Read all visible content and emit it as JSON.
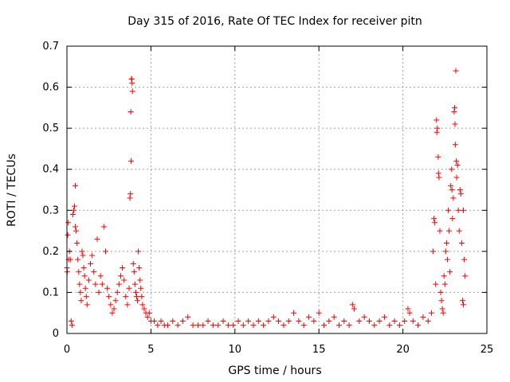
{
  "chart_data": {
    "type": "scatter",
    "title": "Day 315 of 2016, Rate Of TEC Index for receiver pitn",
    "xlabel": "GPS time / hours",
    "ylabel": "ROTI / TECUs",
    "xlim": [
      0,
      25
    ],
    "ylim": [
      0,
      0.7
    ],
    "grid": true,
    "marker": "+",
    "marker_color": "#ff0000",
    "x_ticks": [
      0,
      5,
      10,
      15,
      20,
      25
    ],
    "x_tick_labels": [
      "0",
      "5",
      "10",
      "15",
      "20",
      "25"
    ],
    "y_ticks": [
      0,
      0.1,
      0.2,
      0.3,
      0.4,
      0.5,
      0.6,
      0.7
    ],
    "y_tick_labels": [
      "0",
      "0.1",
      "0.2",
      "0.3",
      "0.4",
      "0.5",
      "0.6",
      "0.7"
    ],
    "series": [
      {
        "name": "ROTI",
        "points": [
          [
            0.0,
            0.16
          ],
          [
            0.02,
            0.15
          ],
          [
            0.05,
            0.24
          ],
          [
            0.08,
            0.27
          ],
          [
            0.1,
            0.18
          ],
          [
            0.15,
            0.2
          ],
          [
            0.2,
            0.18
          ],
          [
            0.25,
            0.03
          ],
          [
            0.3,
            0.02
          ],
          [
            0.35,
            0.29
          ],
          [
            0.4,
            0.3
          ],
          [
            0.45,
            0.31
          ],
          [
            0.5,
            0.36
          ],
          [
            0.5,
            0.26
          ],
          [
            0.55,
            0.25
          ],
          [
            0.6,
            0.22
          ],
          [
            0.65,
            0.18
          ],
          [
            0.7,
            0.15
          ],
          [
            0.75,
            0.12
          ],
          [
            0.8,
            0.1
          ],
          [
            0.85,
            0.08
          ],
          [
            0.9,
            0.2
          ],
          [
            0.95,
            0.19
          ],
          [
            1.0,
            0.16
          ],
          [
            1.05,
            0.14
          ],
          [
            1.1,
            0.11
          ],
          [
            1.15,
            0.09
          ],
          [
            1.2,
            0.07
          ],
          [
            1.3,
            0.13
          ],
          [
            1.4,
            0.17
          ],
          [
            1.5,
            0.19
          ],
          [
            1.6,
            0.15
          ],
          [
            1.7,
            0.12
          ],
          [
            1.8,
            0.23
          ],
          [
            1.9,
            0.1
          ],
          [
            2.0,
            0.14
          ],
          [
            2.1,
            0.12
          ],
          [
            2.2,
            0.26
          ],
          [
            2.3,
            0.2
          ],
          [
            2.4,
            0.11
          ],
          [
            2.5,
            0.09
          ],
          [
            2.6,
            0.07
          ],
          [
            2.7,
            0.05
          ],
          [
            2.8,
            0.06
          ],
          [
            2.9,
            0.08
          ],
          [
            3.0,
            0.1
          ],
          [
            3.1,
            0.12
          ],
          [
            3.2,
            0.14
          ],
          [
            3.3,
            0.16
          ],
          [
            3.4,
            0.13
          ],
          [
            3.5,
            0.09
          ],
          [
            3.6,
            0.07
          ],
          [
            3.7,
            0.11
          ],
          [
            3.75,
            0.33
          ],
          [
            3.78,
            0.34
          ],
          [
            3.8,
            0.54
          ],
          [
            3.82,
            0.42
          ],
          [
            3.84,
            0.62
          ],
          [
            3.86,
            0.62
          ],
          [
            3.88,
            0.61
          ],
          [
            3.9,
            0.59
          ],
          [
            3.95,
            0.17
          ],
          [
            4.0,
            0.15
          ],
          [
            4.05,
            0.12
          ],
          [
            4.1,
            0.1
          ],
          [
            4.15,
            0.09
          ],
          [
            4.2,
            0.08
          ],
          [
            4.25,
            0.2
          ],
          [
            4.3,
            0.16
          ],
          [
            4.35,
            0.13
          ],
          [
            4.4,
            0.11
          ],
          [
            4.45,
            0.09
          ],
          [
            4.5,
            0.07
          ],
          [
            4.6,
            0.06
          ],
          [
            4.7,
            0.05
          ],
          [
            4.8,
            0.04
          ],
          [
            4.9,
            0.05
          ],
          [
            5.0,
            0.03
          ],
          [
            5.2,
            0.03
          ],
          [
            5.4,
            0.02
          ],
          [
            5.6,
            0.03
          ],
          [
            5.8,
            0.02
          ],
          [
            6.0,
            0.02
          ],
          [
            6.3,
            0.03
          ],
          [
            6.6,
            0.02
          ],
          [
            6.9,
            0.03
          ],
          [
            7.2,
            0.04
          ],
          [
            7.5,
            0.02
          ],
          [
            7.8,
            0.02
          ],
          [
            8.1,
            0.02
          ],
          [
            8.4,
            0.03
          ],
          [
            8.7,
            0.02
          ],
          [
            9.0,
            0.02
          ],
          [
            9.3,
            0.03
          ],
          [
            9.6,
            0.02
          ],
          [
            9.9,
            0.02
          ],
          [
            10.2,
            0.03
          ],
          [
            10.5,
            0.02
          ],
          [
            10.8,
            0.03
          ],
          [
            11.1,
            0.02
          ],
          [
            11.4,
            0.03
          ],
          [
            11.7,
            0.02
          ],
          [
            12.0,
            0.03
          ],
          [
            12.3,
            0.04
          ],
          [
            12.6,
            0.03
          ],
          [
            12.9,
            0.02
          ],
          [
            13.2,
            0.03
          ],
          [
            13.5,
            0.05
          ],
          [
            13.8,
            0.03
          ],
          [
            14.1,
            0.02
          ],
          [
            14.4,
            0.04
          ],
          [
            14.7,
            0.03
          ],
          [
            15.0,
            0.05
          ],
          [
            15.3,
            0.02
          ],
          [
            15.6,
            0.03
          ],
          [
            15.9,
            0.04
          ],
          [
            16.2,
            0.02
          ],
          [
            16.5,
            0.03
          ],
          [
            16.8,
            0.02
          ],
          [
            17.0,
            0.07
          ],
          [
            17.1,
            0.06
          ],
          [
            17.4,
            0.03
          ],
          [
            17.7,
            0.04
          ],
          [
            18.0,
            0.03
          ],
          [
            18.3,
            0.02
          ],
          [
            18.6,
            0.03
          ],
          [
            18.9,
            0.04
          ],
          [
            19.2,
            0.02
          ],
          [
            19.5,
            0.03
          ],
          [
            19.8,
            0.02
          ],
          [
            20.1,
            0.03
          ],
          [
            20.3,
            0.06
          ],
          [
            20.4,
            0.05
          ],
          [
            20.6,
            0.03
          ],
          [
            20.9,
            0.02
          ],
          [
            21.2,
            0.04
          ],
          [
            21.5,
            0.03
          ],
          [
            21.7,
            0.05
          ],
          [
            21.8,
            0.2
          ],
          [
            21.85,
            0.28
          ],
          [
            21.9,
            0.27
          ],
          [
            21.95,
            0.12
          ],
          [
            22.0,
            0.52
          ],
          [
            22.02,
            0.49
          ],
          [
            22.05,
            0.5
          ],
          [
            22.1,
            0.43
          ],
          [
            22.12,
            0.39
          ],
          [
            22.15,
            0.38
          ],
          [
            22.2,
            0.25
          ],
          [
            22.25,
            0.1
          ],
          [
            22.3,
            0.08
          ],
          [
            22.35,
            0.06
          ],
          [
            22.4,
            0.05
          ],
          [
            22.45,
            0.14
          ],
          [
            22.5,
            0.12
          ],
          [
            22.55,
            0.2
          ],
          [
            22.6,
            0.22
          ],
          [
            22.65,
            0.18
          ],
          [
            22.7,
            0.3
          ],
          [
            22.75,
            0.25
          ],
          [
            22.8,
            0.15
          ],
          [
            22.85,
            0.36
          ],
          [
            22.9,
            0.4
          ],
          [
            22.92,
            0.35
          ],
          [
            22.95,
            0.28
          ],
          [
            23.0,
            0.33
          ],
          [
            23.05,
            0.54
          ],
          [
            23.08,
            0.55
          ],
          [
            23.1,
            0.51
          ],
          [
            23.12,
            0.46
          ],
          [
            23.15,
            0.64
          ],
          [
            23.18,
            0.42
          ],
          [
            23.2,
            0.38
          ],
          [
            23.25,
            0.41
          ],
          [
            23.3,
            0.3
          ],
          [
            23.35,
            0.25
          ],
          [
            23.4,
            0.35
          ],
          [
            23.45,
            0.34
          ],
          [
            23.5,
            0.22
          ],
          [
            23.55,
            0.08
          ],
          [
            23.6,
            0.07
          ],
          [
            23.6,
            0.3
          ],
          [
            23.65,
            0.18
          ],
          [
            23.7,
            0.14
          ]
        ]
      }
    ]
  }
}
